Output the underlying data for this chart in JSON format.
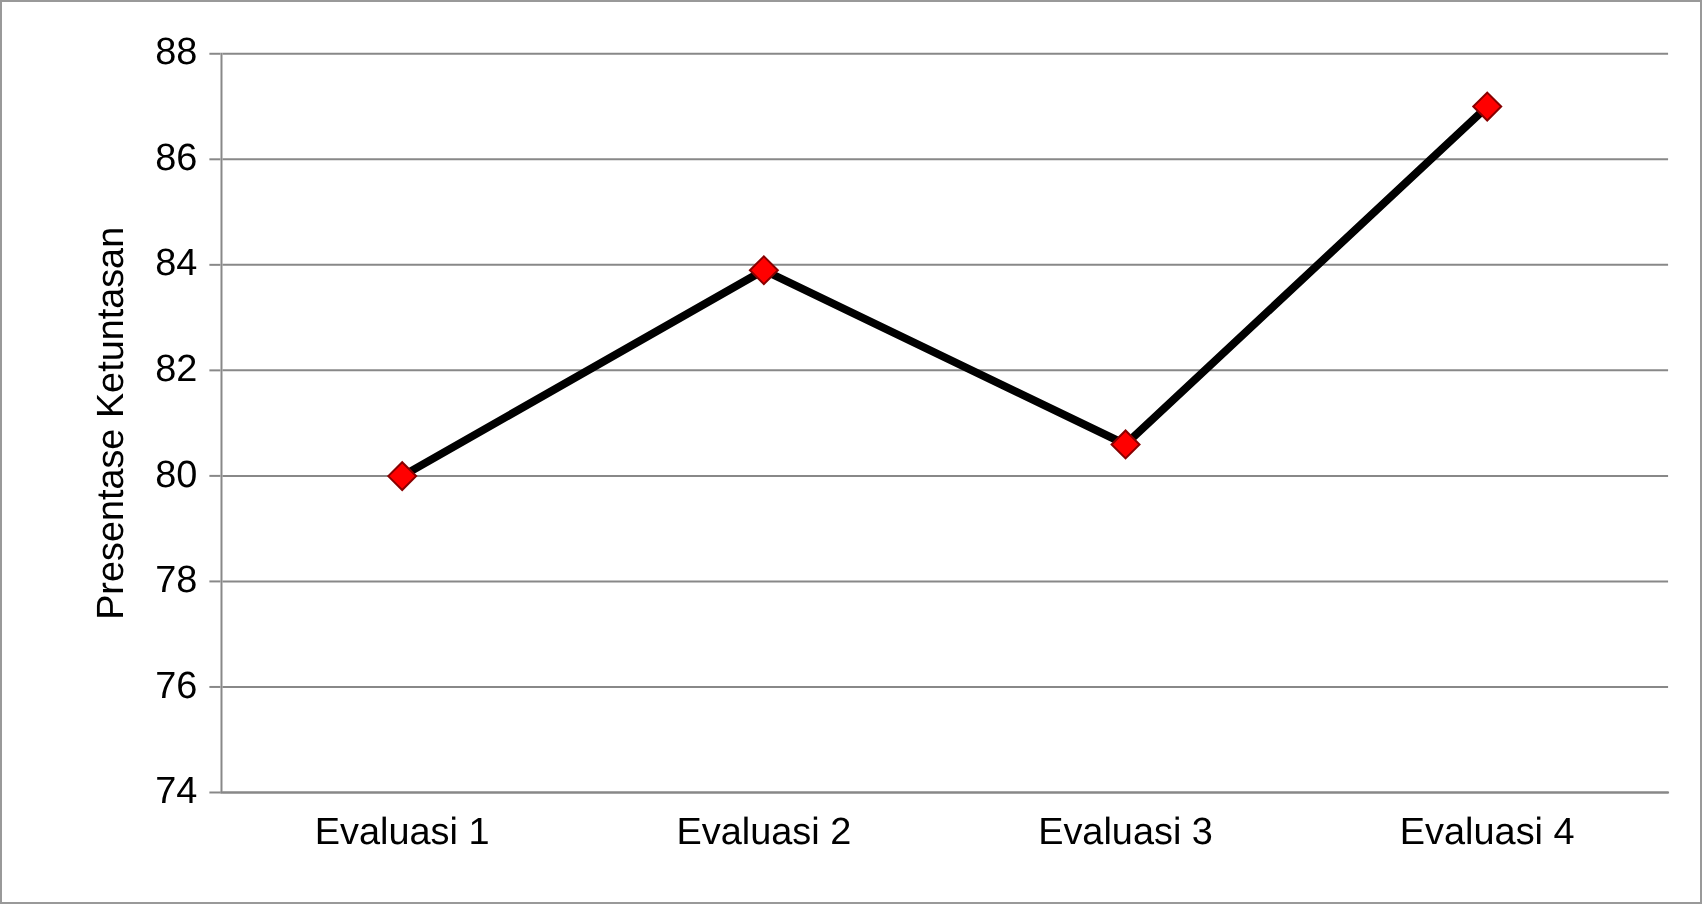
{
  "chart_data": {
    "type": "line",
    "ylabel": "Presentase Ketuntasan",
    "categories": [
      "Evaluasi 1",
      "Evaluasi 2",
      "Evaluasi 3",
      "Evaluasi 4"
    ],
    "series": [
      {
        "color": "#000000",
        "values": [
          80,
          83.9,
          80.6,
          87.0
        ]
      }
    ],
    "ylim": [
      74,
      88
    ],
    "yticks": [
      74,
      76,
      78,
      80,
      82,
      84,
      86,
      88
    ],
    "grid": "y",
    "legend": false,
    "marker": "diamond",
    "line_style": "solid"
  }
}
